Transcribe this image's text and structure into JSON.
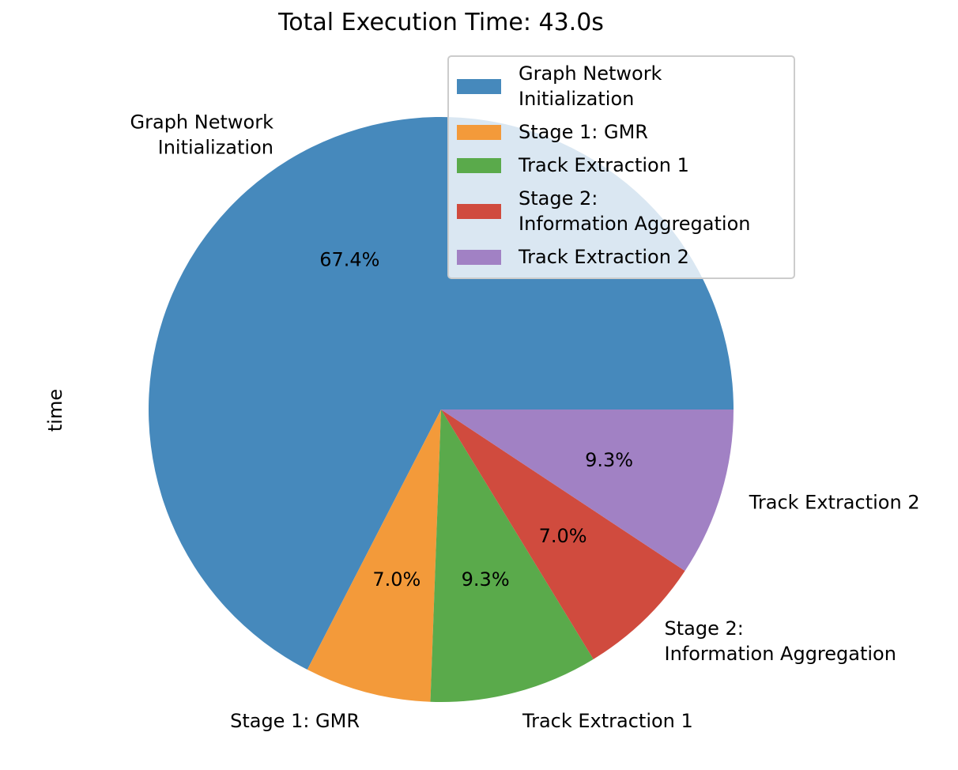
{
  "chart_data": {
    "type": "pie",
    "title": "Total Execution Time: 43.0s",
    "ylabel": "time",
    "categories": [
      "Graph Network\nInitialization",
      "Stage 1: GMR",
      "Track Extraction 1",
      "Stage 2:\nInformation Aggregation",
      "Track Extraction 2"
    ],
    "values": [
      29.0,
      3.0,
      4.0,
      3.0,
      4.0
    ],
    "percent_labels": [
      "67.4%",
      "7.0%",
      "9.3%",
      "7.0%",
      "9.3%"
    ],
    "colors": [
      "#4689bc",
      "#f39a3a",
      "#5aaa4b",
      "#d04b3e",
      "#a181c4"
    ],
    "legend": {
      "location": "upper right",
      "entries": [
        "Graph Network\nInitialization",
        "Stage 1: GMR",
        "Track Extraction 1",
        "Stage 2:\nInformation Aggregation",
        "Track Extraction 2"
      ]
    },
    "start_angle_deg": 0,
    "direction": "counterclockwise"
  }
}
